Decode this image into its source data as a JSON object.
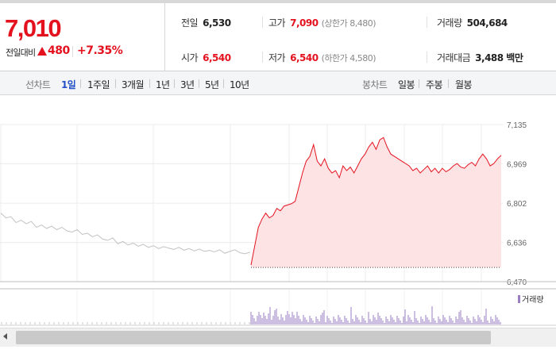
{
  "quote": {
    "price": "7,010",
    "prev_label": "전일대비",
    "change": "480",
    "rate": "+7.35%",
    "prev_close": {
      "label": "전일",
      "value": "6,530"
    },
    "high": {
      "label": "고가",
      "value": "7,090",
      "sub": "(상한가 8,480)"
    },
    "volume": {
      "label": "거래량",
      "value": "504,684"
    },
    "open": {
      "label": "시가",
      "value": "6,540"
    },
    "low": {
      "label": "저가",
      "value": "6,540",
      "sub": "(하한가 4,580)"
    },
    "amount": {
      "label": "거래대금",
      "value": "3,488 백만"
    },
    "colors": {
      "up": "#e4121f",
      "down": "#2352c6",
      "line": "#e4121f",
      "fill": "#fde3e4",
      "prev": "#c2c2c2",
      "volume": "#9a7fc4"
    }
  },
  "toolbar": {
    "line_label": "선차트",
    "line_periods": [
      "1일",
      "1주일",
      "3개월",
      "1년",
      "3년",
      "5년",
      "10년"
    ],
    "active_period": "1일",
    "candle_label": "봉차트",
    "candle_periods": [
      "일봉",
      "주봉",
      "월봉"
    ]
  },
  "chart_data": {
    "type": "line",
    "title": "",
    "xlabel": "",
    "ylabel": "",
    "ylim": [
      6470,
      7135
    ],
    "yticks": [
      7135,
      6969,
      6802,
      6636,
      6470
    ],
    "ytick_labels": [
      "7,135",
      "6,969",
      "6,802",
      "6,636",
      "6,470"
    ],
    "grid": true,
    "series": [
      {
        "role": "previous-day",
        "color": "#c2c2c2",
        "y": [
          6760,
          6740,
          6745,
          6720,
          6730,
          6715,
          6725,
          6700,
          6710,
          6695,
          6705,
          6690,
          6700,
          6685,
          6680,
          6690,
          6670,
          6675,
          6660,
          6668,
          6650,
          6645,
          6655,
          6630,
          6640,
          6625,
          6633,
          6620,
          6628,
          6615,
          6622,
          6610,
          6618,
          6612,
          6606,
          6615,
          6603,
          6610,
          6600,
          6608,
          6598,
          6602,
          6596,
          6605,
          6590,
          6598,
          6605,
          6592,
          6588,
          6595
        ]
      },
      {
        "role": "today",
        "color": "#e4121f",
        "y": [
          6540,
          6620,
          6700,
          6735,
          6760,
          6740,
          6750,
          6780,
          6770,
          6790,
          6795,
          6800,
          6810,
          6870,
          6930,
          6980,
          7000,
          7050,
          6980,
          6960,
          6990,
          6950,
          6930,
          6940,
          6910,
          6960,
          6940,
          6955,
          6930,
          6960,
          6990,
          7010,
          7040,
          7060,
          7030,
          7070,
          7080,
          7040,
          7010,
          7000,
          6990,
          6980,
          6970,
          6960,
          6940,
          6950,
          6930,
          6945,
          6960,
          6935,
          6950,
          6930,
          6950,
          6935,
          6945,
          6960,
          6970,
          6955,
          6950,
          6965,
          6975,
          6960,
          6990,
          7010,
          6990,
          6960,
          6970,
          6990,
          7005
        ]
      }
    ],
    "baseline": 6530,
    "volume": {
      "label": "거래량"
    }
  },
  "scrollbar": {
    "left_arrow": "scroll-left"
  }
}
